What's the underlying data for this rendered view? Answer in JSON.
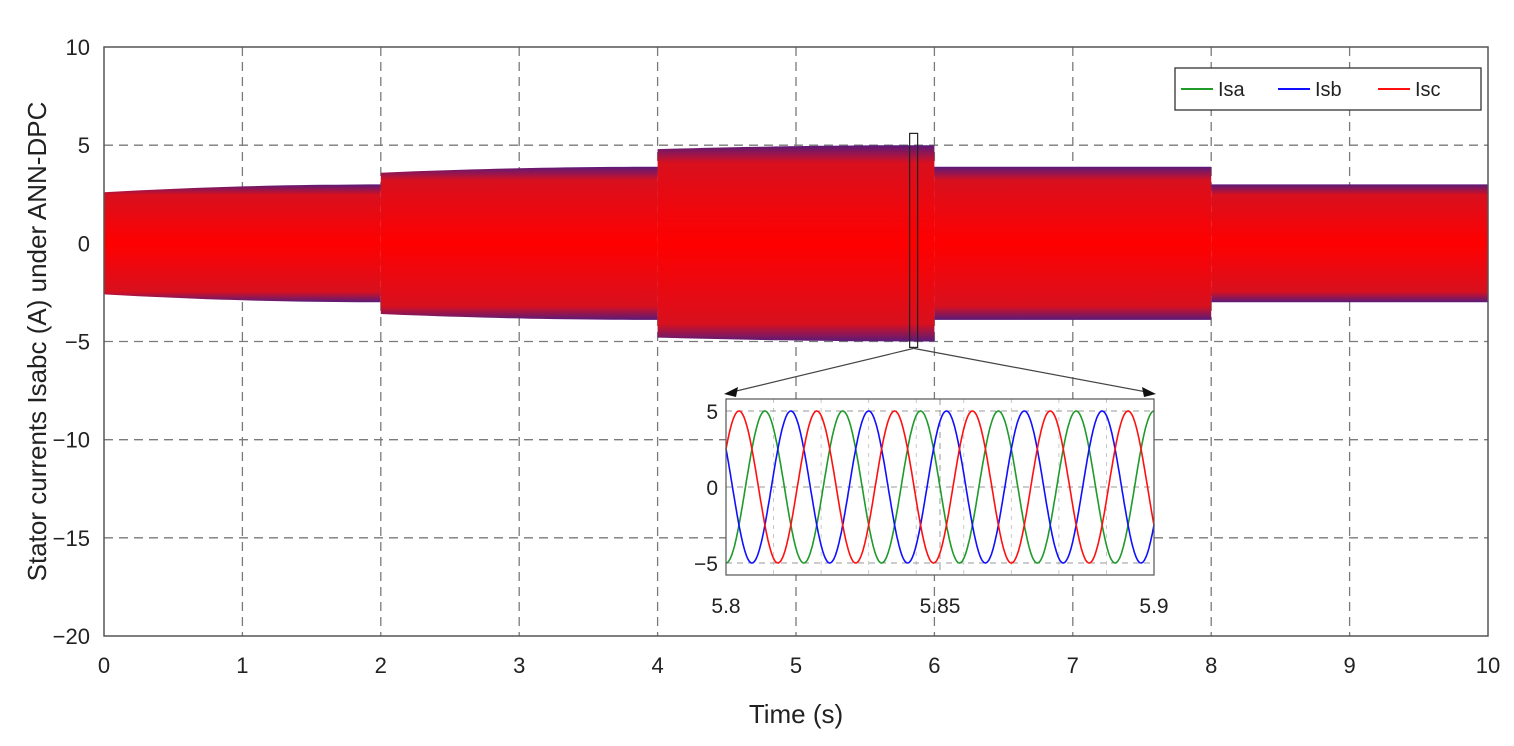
{
  "chart_data": {
    "type": "line",
    "xlabel": "Time (s)",
    "ylabel": "Stator currents Isabc (A) under ANN-DPC",
    "xlim": [
      0,
      10
    ],
    "ylim": [
      -20,
      10
    ],
    "x_ticks": [
      "0",
      "1",
      "2",
      "3",
      "4",
      "5",
      "6",
      "7",
      "8",
      "9",
      "10"
    ],
    "y_ticks": [
      "10",
      "5",
      "0",
      "−5",
      "−10",
      "−15",
      "−20"
    ],
    "grid": true,
    "legend_position": "top-right",
    "series": [
      {
        "name": "Isa",
        "color": "#1f9a2b"
      },
      {
        "name": "Isb",
        "color": "#1010ff"
      },
      {
        "name": "Isc",
        "color": "#ff1010"
      }
    ],
    "amplitude_envelope": {
      "segments": [
        {
          "t_start": 0,
          "t_end": 2,
          "amplitude_start": 2.6,
          "amplitude_end": 3.0
        },
        {
          "t_start": 2,
          "t_end": 4,
          "amplitude_start": 3.6,
          "amplitude_end": 3.9
        },
        {
          "t_start": 4,
          "t_end": 6,
          "amplitude_start": 4.8,
          "amplitude_end": 5.0
        },
        {
          "t_start": 6,
          "t_end": 8,
          "amplitude_start": 3.9,
          "amplitude_end": 3.9
        },
        {
          "t_start": 8,
          "t_end": 10,
          "amplitude_start": 3.0,
          "amplitude_end": 3.0
        }
      ],
      "dominant_color": "#ff0000"
    },
    "inset": {
      "xlim": [
        5.8,
        5.9
      ],
      "ylim": [
        -5,
        5
      ],
      "x_ticks": [
        "5.8",
        "5.85",
        "5.9"
      ],
      "y_ticks": [
        "5",
        "0",
        "−5"
      ],
      "amplitude": 5,
      "cycles": 5.5,
      "phase_offsets_deg": {
        "Isa": -90,
        "Isb": 150,
        "Isc": 30
      }
    }
  }
}
